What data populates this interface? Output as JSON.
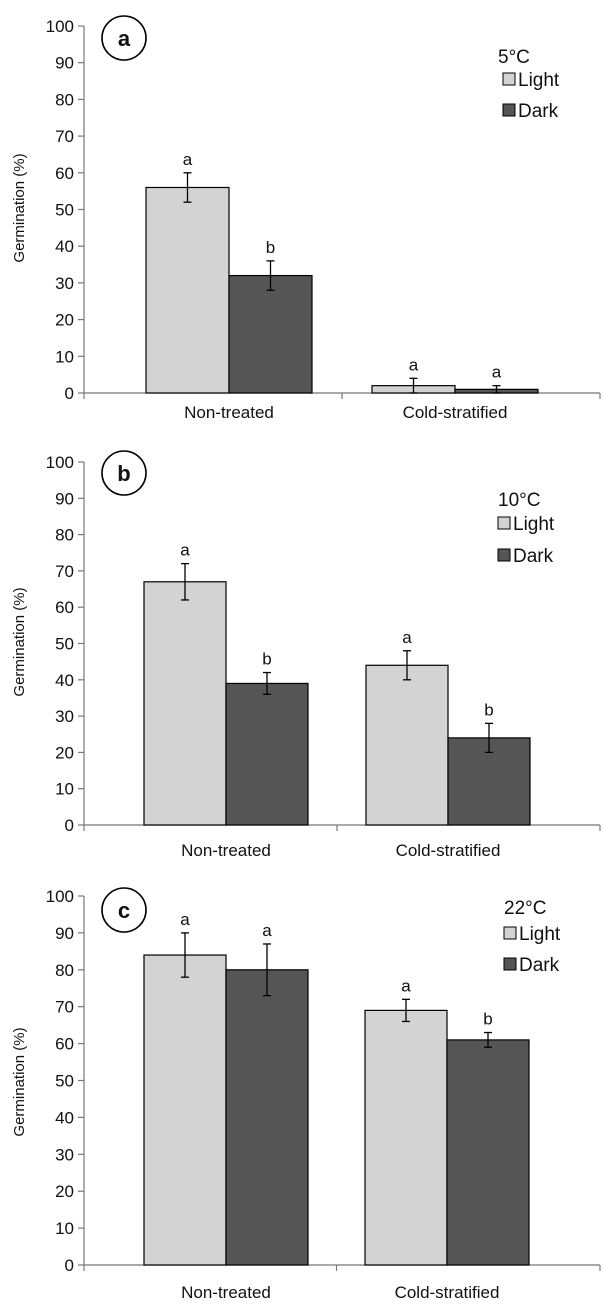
{
  "chart_data": [
    {
      "panel": "a",
      "type": "bar",
      "ylabel": "Germination (%)",
      "ylim": [
        0,
        100
      ],
      "yticks": [
        0,
        10,
        20,
        30,
        40,
        50,
        60,
        70,
        80,
        90,
        100
      ],
      "categories": [
        "Non-treated",
        "Cold-stratified"
      ],
      "legend_title": "5°C",
      "legend_position": "top-right",
      "series": [
        {
          "name": "Light",
          "color": "#d3d3d3",
          "values": [
            56,
            2
          ],
          "errors": [
            4,
            2
          ],
          "letters": [
            "a",
            "a"
          ]
        },
        {
          "name": "Dark",
          "color": "#555555",
          "values": [
            32,
            1
          ],
          "errors": [
            4,
            1
          ],
          "letters": [
            "b",
            "a"
          ]
        }
      ]
    },
    {
      "panel": "b",
      "type": "bar",
      "ylabel": "Germination (%)",
      "ylim": [
        0,
        100
      ],
      "yticks": [
        0,
        10,
        20,
        30,
        40,
        50,
        60,
        70,
        80,
        90,
        100
      ],
      "categories": [
        "Non-treated",
        "Cold-stratified"
      ],
      "legend_title": "10°C",
      "legend_position": "top-right",
      "series": [
        {
          "name": "Light",
          "color": "#d3d3d3",
          "values": [
            67,
            44
          ],
          "errors": [
            5,
            4
          ],
          "letters": [
            "a",
            "a"
          ]
        },
        {
          "name": "Dark",
          "color": "#555555",
          "values": [
            39,
            24
          ],
          "errors": [
            3,
            4
          ],
          "letters": [
            "b",
            "b"
          ]
        }
      ]
    },
    {
      "panel": "c",
      "type": "bar",
      "ylabel": "Germination (%)",
      "ylim": [
        0,
        100
      ],
      "yticks": [
        0,
        10,
        20,
        30,
        40,
        50,
        60,
        70,
        80,
        90,
        100
      ],
      "categories": [
        "Non-treated",
        "Cold-stratified"
      ],
      "legend_title": "22°C",
      "legend_position": "top-right",
      "series": [
        {
          "name": "Light",
          "color": "#d3d3d3",
          "values": [
            84,
            69
          ],
          "errors": [
            6,
            3
          ],
          "letters": [
            "a",
            "a"
          ]
        },
        {
          "name": "Dark",
          "color": "#555555",
          "values": [
            80,
            61
          ],
          "errors": [
            7,
            2
          ],
          "letters": [
            "a",
            "b"
          ]
        }
      ]
    }
  ]
}
